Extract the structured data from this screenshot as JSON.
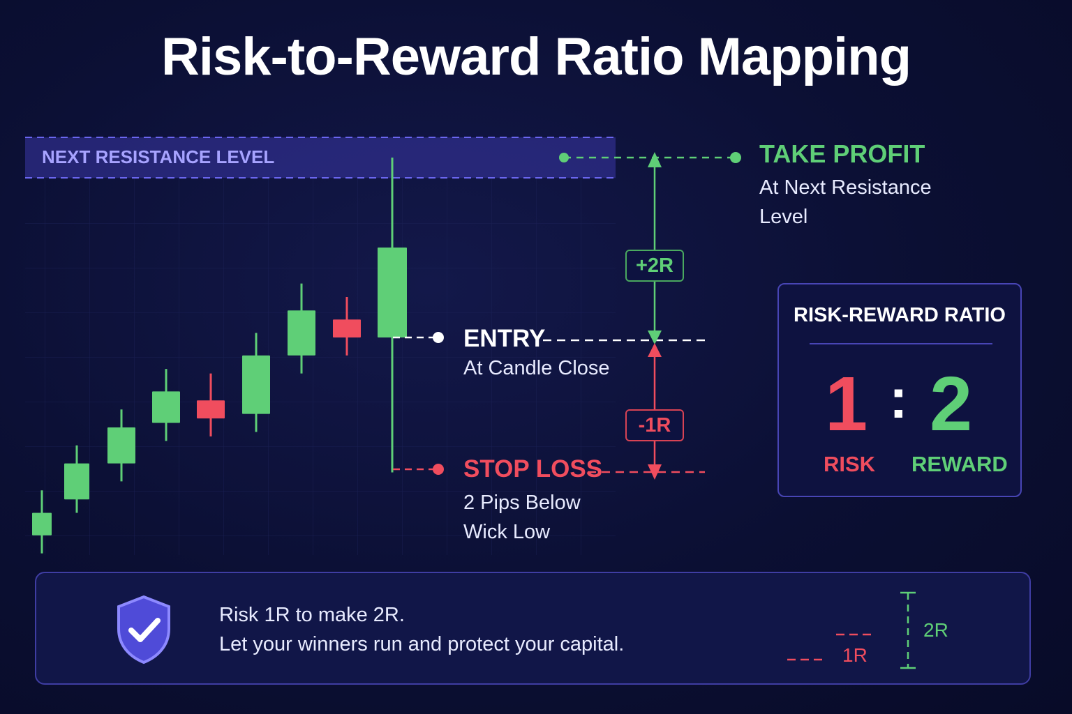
{
  "title": "Risk-to-Reward Ratio Mapping",
  "resistance": {
    "label": "NEXT RESISTANCE LEVEL"
  },
  "take_profit": {
    "heading": "TAKE PROFIT",
    "line1": "At Next Resistance",
    "line2": "Level"
  },
  "entry": {
    "heading": "ENTRY",
    "sub": "At Candle Close"
  },
  "stop_loss": {
    "heading": "STOP LOSS",
    "line1": "2 Pips Below",
    "line2": "Wick Low"
  },
  "markers": {
    "reward": "+2R",
    "risk": "-1R"
  },
  "ratio_card": {
    "title": "RISK-REWARD RATIO",
    "risk_value": "1",
    "separator": ":",
    "reward_value": "2",
    "risk_label": "RISK",
    "reward_label": "REWARD"
  },
  "footer": {
    "line1": "Risk 1R to make 2R.",
    "line2": "Let your winners run and protect your capital.",
    "mini_risk": "1R",
    "mini_reward": "2R"
  },
  "colors": {
    "bull": "#5fcf77",
    "bear": "#f04d5e",
    "accent": "#5b57e0",
    "background": "#0b0f33"
  },
  "icons": {
    "footer": "shield-check-icon"
  },
  "candles": [
    {
      "open": 96.5,
      "close": 99.0,
      "high": 101.5,
      "low": 94.5
    },
    {
      "open": 100.5,
      "close": 104.5,
      "high": 106.5,
      "low": 99.0
    },
    {
      "open": 104.5,
      "close": 108.5,
      "high": 110.5,
      "low": 102.5
    },
    {
      "open": 109.0,
      "close": 112.5,
      "high": 115.0,
      "low": 107.0
    },
    {
      "open": 111.5,
      "close": 109.5,
      "high": 114.5,
      "low": 107.5
    },
    {
      "open": 110.0,
      "close": 116.5,
      "high": 119.0,
      "low": 108.0
    },
    {
      "open": 116.5,
      "close": 121.5,
      "high": 124.5,
      "low": 114.5
    },
    {
      "open": 120.5,
      "close": 118.5,
      "high": 123.0,
      "low": 116.5
    },
    {
      "open": 118.5,
      "close": 128.5,
      "high": 138.5,
      "low": 103.5
    }
  ]
}
